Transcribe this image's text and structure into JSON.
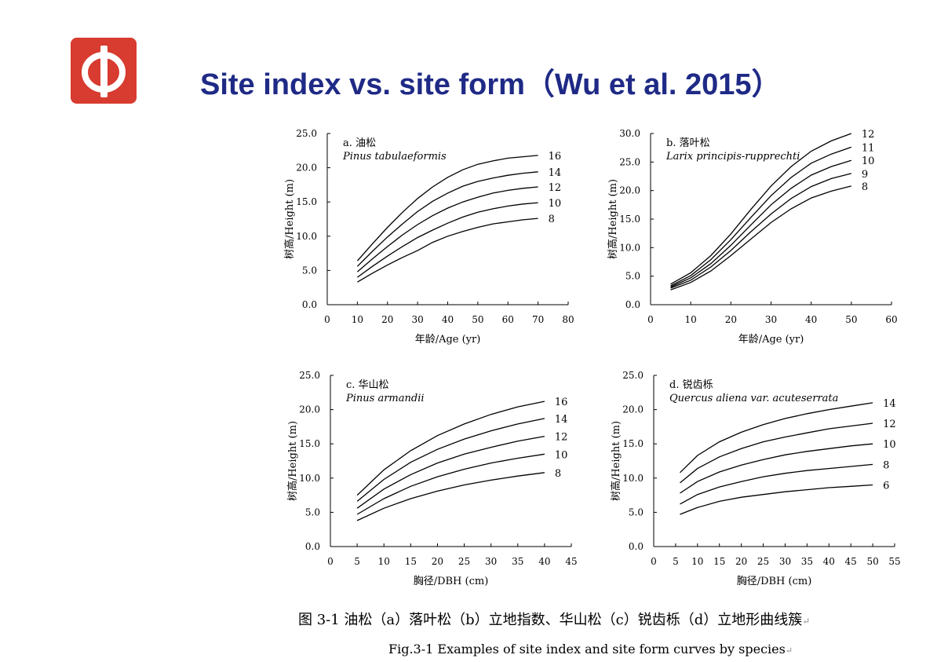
{
  "slide": {
    "title": "Site index vs. site form（Wu et al. 2015）",
    "logo_glyph": "φ",
    "caption_zh": "图 3-1 油松（a）落叶松（b）立地指数、华山松（c）锐齿栎（d）立地形曲线簇",
    "caption_en": "Fig.3-1 Examples of site index and site form curves by species",
    "paragraph_mark": "↵",
    "colors": {
      "title": "#1f2a86",
      "logo_bg": "#d83b2f",
      "curve": "#000000"
    }
  },
  "chart_data": [
    {
      "type": "line",
      "panel_label": "a. 油松",
      "species": "Pinus tabulaeformis",
      "xlabel": "年龄/Age (yr)",
      "ylabel": "树高/Height (m)",
      "xlim": [
        0,
        80
      ],
      "ylim": [
        0,
        25
      ],
      "xticks": [
        0,
        10,
        20,
        30,
        40,
        50,
        60,
        70,
        80
      ],
      "yticks": [
        0,
        5,
        10,
        15,
        20,
        25
      ],
      "y_decimals": 1,
      "x": [
        10,
        15,
        20,
        25,
        30,
        35,
        40,
        45,
        50,
        55,
        60,
        65,
        70
      ],
      "series": [
        {
          "name": "16",
          "values": [
            6.4,
            8.9,
            11.3,
            13.5,
            15.5,
            17.2,
            18.6,
            19.7,
            20.5,
            21.0,
            21.4,
            21.6,
            21.8
          ]
        },
        {
          "name": "14",
          "values": [
            5.6,
            7.8,
            9.9,
            11.8,
            13.6,
            15.1,
            16.3,
            17.3,
            18.0,
            18.5,
            18.9,
            19.2,
            19.4
          ]
        },
        {
          "name": "12",
          "values": [
            4.8,
            6.7,
            8.5,
            10.2,
            11.7,
            13.0,
            14.1,
            15.0,
            15.7,
            16.3,
            16.7,
            17.0,
            17.2
          ]
        },
        {
          "name": "10",
          "values": [
            4.0,
            5.6,
            7.1,
            8.5,
            9.8,
            10.9,
            11.9,
            12.8,
            13.5,
            14.0,
            14.4,
            14.7,
            14.9
          ]
        },
        {
          "name": "8",
          "values": [
            3.3,
            4.6,
            5.8,
            6.9,
            7.9,
            9.1,
            10.0,
            10.7,
            11.3,
            11.8,
            12.1,
            12.4,
            12.6
          ]
        }
      ]
    },
    {
      "type": "line",
      "panel_label": "b. 落叶松",
      "species": "Larix principis-rupprechti",
      "xlabel": "年龄/Age (yr)",
      "ylabel": "树高/Height (m)",
      "xlim": [
        0,
        60
      ],
      "ylim": [
        0,
        30
      ],
      "xticks": [
        0,
        10,
        20,
        30,
        40,
        50,
        60
      ],
      "yticks": [
        0,
        5,
        10,
        15,
        20,
        25,
        30
      ],
      "y_decimals": 1,
      "x": [
        5,
        10,
        15,
        20,
        25,
        30,
        35,
        40,
        45,
        50
      ],
      "series": [
        {
          "name": "12",
          "values": [
            3.6,
            5.6,
            8.6,
            12.4,
            16.7,
            20.8,
            24.2,
            26.9,
            28.7,
            30.0
          ]
        },
        {
          "name": "11",
          "values": [
            3.3,
            5.1,
            7.9,
            11.4,
            15.3,
            19.1,
            22.3,
            24.8,
            26.4,
            27.6
          ]
        },
        {
          "name": "10",
          "values": [
            3.1,
            4.7,
            7.2,
            10.4,
            14.0,
            17.5,
            20.4,
            22.7,
            24.2,
            25.3
          ]
        },
        {
          "name": "9",
          "values": [
            2.9,
            4.3,
            6.6,
            9.5,
            12.8,
            15.9,
            18.6,
            20.7,
            22.1,
            23.0
          ]
        },
        {
          "name": "8",
          "values": [
            2.6,
            3.9,
            5.9,
            8.6,
            11.5,
            14.4,
            16.8,
            18.7,
            19.9,
            20.8
          ]
        }
      ]
    },
    {
      "type": "line",
      "panel_label": "c. 华山松",
      "species": "Pinus armandii",
      "xlabel": "胸径/DBH (cm)",
      "ylabel": "树高/Height (m)",
      "xlim": [
        0,
        45
      ],
      "ylim": [
        0,
        25
      ],
      "xticks": [
        0,
        5,
        10,
        15,
        20,
        25,
        30,
        35,
        40,
        45
      ],
      "yticks": [
        0,
        5,
        10,
        15,
        20,
        25
      ],
      "y_decimals": 1,
      "x": [
        5,
        10,
        15,
        20,
        25,
        30,
        35,
        40
      ],
      "series": [
        {
          "name": "16",
          "values": [
            7.5,
            11.2,
            14.0,
            16.2,
            17.9,
            19.3,
            20.4,
            21.2
          ]
        },
        {
          "name": "14",
          "values": [
            6.6,
            9.8,
            12.3,
            14.2,
            15.7,
            16.9,
            17.9,
            18.7
          ]
        },
        {
          "name": "12",
          "values": [
            5.6,
            8.4,
            10.5,
            12.2,
            13.5,
            14.5,
            15.4,
            16.1
          ]
        },
        {
          "name": "10",
          "values": [
            4.7,
            7.0,
            8.8,
            10.2,
            11.3,
            12.2,
            12.9,
            13.5
          ]
        },
        {
          "name": "8",
          "values": [
            3.8,
            5.6,
            7.0,
            8.1,
            9.0,
            9.7,
            10.3,
            10.8
          ]
        }
      ]
    },
    {
      "type": "line",
      "panel_label": "d. 锐齿栎",
      "species": "Quercus aliena var. acuteserrata",
      "xlabel": "胸径/DBH (cm)",
      "ylabel": "树高/Height (m)",
      "xlim": [
        0,
        55
      ],
      "ylim": [
        0,
        25
      ],
      "xticks": [
        0,
        5,
        10,
        15,
        20,
        25,
        30,
        35,
        40,
        45,
        50,
        55
      ],
      "yticks": [
        0,
        5,
        10,
        15,
        20,
        25
      ],
      "y_decimals": 1,
      "x": [
        6,
        10,
        15,
        20,
        25,
        30,
        35,
        40,
        45,
        50
      ],
      "series": [
        {
          "name": "14",
          "values": [
            10.8,
            13.3,
            15.3,
            16.7,
            17.8,
            18.7,
            19.4,
            20.0,
            20.5,
            21.0
          ]
        },
        {
          "name": "12",
          "values": [
            9.3,
            11.4,
            13.1,
            14.3,
            15.3,
            16.0,
            16.6,
            17.2,
            17.6,
            18.0
          ]
        },
        {
          "name": "10",
          "values": [
            7.8,
            9.5,
            10.9,
            11.9,
            12.7,
            13.4,
            13.9,
            14.3,
            14.7,
            15.0
          ]
        },
        {
          "name": "8",
          "values": [
            6.2,
            7.6,
            8.7,
            9.5,
            10.2,
            10.7,
            11.1,
            11.4,
            11.7,
            12.0
          ]
        },
        {
          "name": "6",
          "values": [
            4.7,
            5.7,
            6.6,
            7.2,
            7.6,
            8.0,
            8.3,
            8.6,
            8.8,
            9.0
          ]
        }
      ]
    }
  ]
}
